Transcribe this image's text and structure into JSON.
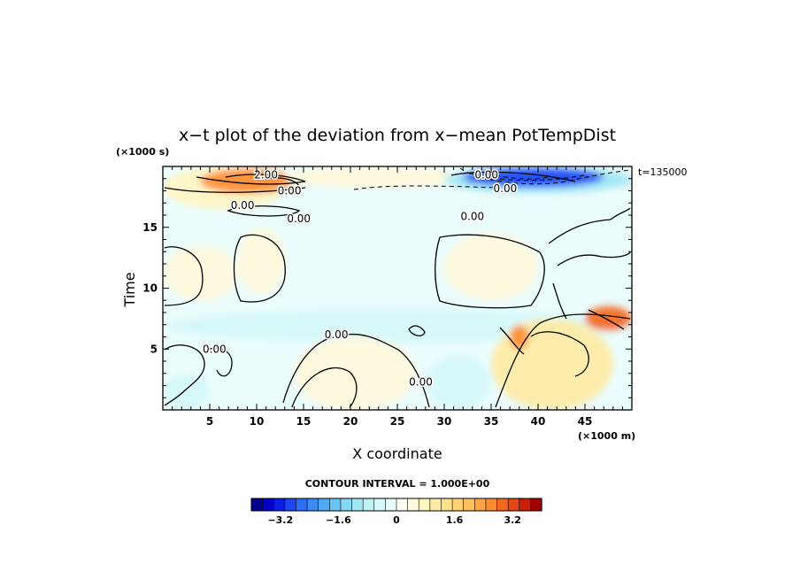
{
  "chart_data": {
    "type": "heatmap",
    "title": "x−t plot of the deviation from x−mean PotTempDist",
    "xlabel": "X coordinate",
    "ylabel": "Time",
    "x_unit": "(×1000 m)",
    "y_unit": "(×1000 s)",
    "time_label": "t=135000",
    "x_ticks": [
      "5",
      "10",
      "15",
      "20",
      "25",
      "30",
      "35",
      "40",
      "45"
    ],
    "y_ticks": [
      "5",
      "10",
      "15"
    ],
    "xlim": [
      0,
      50
    ],
    "ylim": [
      0,
      20
    ],
    "contour_interval_text": "CONTOUR INTERVAL = 1.000E+00",
    "contour_labels": [
      {
        "text": "2.00",
        "x": 11,
        "y": 19.3
      },
      {
        "text": "0.00",
        "x": 13.5,
        "y": 18.0
      },
      {
        "text": "0.00",
        "x": 8.5,
        "y": 16.8
      },
      {
        "text": "0.00",
        "x": 14.5,
        "y": 15.7
      },
      {
        "text": "0.00",
        "x": 33,
        "y": 15.9
      },
      {
        "text": "0.00",
        "x": 18.5,
        "y": 6.2
      },
      {
        "text": "0.00",
        "x": 5.5,
        "y": 5.0
      },
      {
        "text": "0.00",
        "x": 27.5,
        "y": 2.3
      },
      {
        "text": "0.00",
        "x": 36.5,
        "y": 18.2
      },
      {
        "text": "0.00",
        "x": 34.5,
        "y": 19.3
      }
    ],
    "regions": [
      {
        "x": [
          0,
          13
        ],
        "y": [
          16.5,
          20
        ],
        "value": 0.8
      },
      {
        "x": [
          4,
          14
        ],
        "y": [
          17.8,
          19.8
        ],
        "value": 2.6
      },
      {
        "x": [
          13,
          32
        ],
        "y": [
          18.2,
          20
        ],
        "value": 0.6
      },
      {
        "x": [
          30,
          50
        ],
        "y": [
          17.8,
          20
        ],
        "value": -1.0
      },
      {
        "x": [
          32,
          47
        ],
        "y": [
          18.3,
          19.9
        ],
        "value": -3.0
      },
      {
        "x": [
          0,
          50
        ],
        "y": [
          5.5,
          8.3
        ],
        "value": -0.5
      },
      {
        "x": [
          0,
          8
        ],
        "y": [
          9,
          13.5
        ],
        "value": 0.4
      },
      {
        "x": [
          8,
          13
        ],
        "y": [
          9.5,
          15
        ],
        "value": 0.4
      },
      {
        "x": [
          30,
          40
        ],
        "y": [
          9,
          14.5
        ],
        "value": 0.4
      },
      {
        "x": [
          14,
          27
        ],
        "y": [
          0,
          6
        ],
        "value": 0.6
      },
      {
        "x": [
          35,
          48
        ],
        "y": [
          0,
          7.5
        ],
        "value": 1.0
      },
      {
        "x": [
          45,
          50
        ],
        "y": [
          6.5,
          8.5
        ],
        "value": 2.8
      },
      {
        "x": [
          37,
          39
        ],
        "y": [
          5,
          7
        ],
        "value": 2.6
      },
      {
        "x": [
          0,
          5
        ],
        "y": [
          0,
          3
        ],
        "value": -0.5
      },
      {
        "x": [
          28,
          35
        ],
        "y": [
          0,
          4.5
        ],
        "value": -0.4
      }
    ],
    "colorbar": {
      "min": -4.0,
      "max": 4.0,
      "tick_labels": [
        "−3.2",
        "−1.6",
        "0",
        "1.6",
        "3.2"
      ],
      "tick_values": [
        -3.2,
        -1.6,
        0,
        1.6,
        3.2
      ],
      "colors": [
        "#00008f",
        "#0000c8",
        "#0a1ee6",
        "#1e46f5",
        "#2d6ef5",
        "#3c8cf5",
        "#50aaf5",
        "#69c3f5",
        "#82d7f5",
        "#a0e6f5",
        "#bef0f5",
        "#d7f8f8",
        "#ebfcfc",
        "#fafff0",
        "#fffadc",
        "#fff5c3",
        "#ffeba5",
        "#ffe18c",
        "#ffd272",
        "#ffbe5a",
        "#ffa546",
        "#ff8c32",
        "#f5691e",
        "#e14614",
        "#c81e0a",
        "#a00000"
      ]
    }
  }
}
